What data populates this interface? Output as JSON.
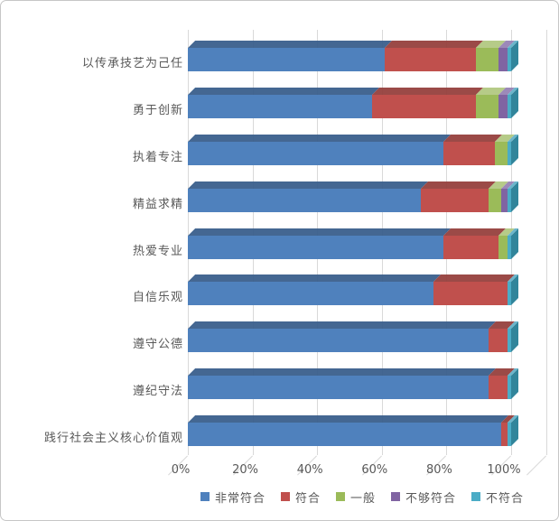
{
  "chart_data": {
    "type": "bar",
    "variant": "horizontal-stacked-100percent-3d",
    "title": "",
    "xlabel": "",
    "ylabel": "",
    "xlim": [
      0,
      100
    ],
    "grid": true,
    "legend_position": "bottom",
    "x_ticks": [
      "0%",
      "20%",
      "40%",
      "60%",
      "80%",
      "100%"
    ],
    "categories": [
      "以传承技艺为己任",
      "勇于创新",
      "执着专注",
      "精益求精",
      "热爱专业",
      "自信乐观",
      "遵守公德",
      "遵纪守法",
      "践行社会主义核心价值观"
    ],
    "series": [
      {
        "name": "非常符合",
        "color": "#4F81BD",
        "top_color": "#3A5F8C",
        "dark_color": "#36597F",
        "values": [
          61,
          57,
          79,
          72,
          79,
          76,
          93,
          93,
          97
        ]
      },
      {
        "name": "符合",
        "color": "#C0504D",
        "top_color": "#96403D",
        "dark_color": "#8E3B38",
        "values": [
          28,
          32,
          16,
          21,
          17,
          23,
          6,
          6,
          2
        ]
      },
      {
        "name": "一般",
        "color": "#9BBB59",
        "top_color": "#B2C882",
        "dark_color": "#758F3F",
        "values": [
          7,
          7,
          4,
          4,
          3,
          0,
          0,
          0,
          0
        ]
      },
      {
        "name": "不够符合",
        "color": "#8064A2",
        "top_color": "#9783B5",
        "dark_color": "#5F4A78",
        "values": [
          3,
          3,
          0,
          2,
          0,
          0,
          0,
          0,
          0
        ]
      },
      {
        "name": "不符合",
        "color": "#4BACC6",
        "top_color": "#63B2C9",
        "dark_color": "#31859B",
        "values": [
          1,
          1,
          1,
          1,
          1,
          1,
          1,
          1,
          1
        ]
      }
    ],
    "colors": {
      "gridline": "#d9d9d9",
      "axis_text": "#595959",
      "background": "#ffffff",
      "frame_border": "#c6c6c6"
    }
  }
}
